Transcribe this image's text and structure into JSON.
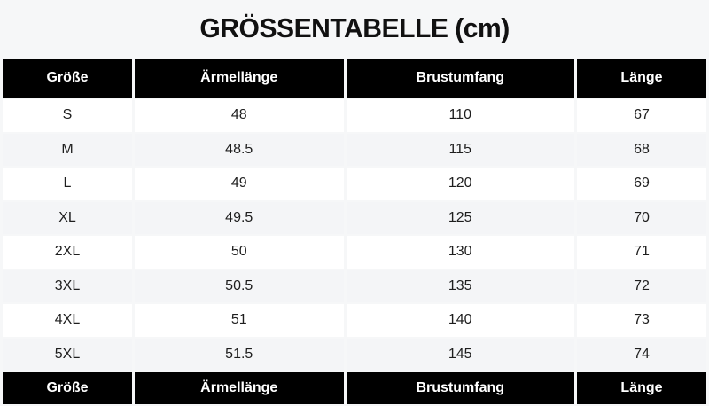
{
  "page": {
    "title": "GRÖSSENTABELLE (cm)",
    "background": "#f6f7f8"
  },
  "chart_data": {
    "type": "table",
    "title": "GRÖSSENTABELLE (cm)",
    "unit": "cm",
    "columns": [
      "Größe",
      "Ärmellänge",
      "Brustumfang",
      "Länge"
    ],
    "rows": [
      [
        "S",
        48,
        110,
        67
      ],
      [
        "M",
        48.5,
        115,
        68
      ],
      [
        "L",
        49,
        120,
        69
      ],
      [
        "XL",
        49.5,
        125,
        70
      ],
      [
        "2XL",
        50,
        130,
        71
      ],
      [
        "3XL",
        50.5,
        135,
        72
      ],
      [
        "4XL",
        51,
        140,
        73
      ],
      [
        "5XL",
        51.5,
        145,
        74
      ]
    ],
    "layout": {
      "header_bg": "#000000",
      "header_text_color": "#ffffff",
      "row_bg": "#ffffff",
      "row_alt_bg": "#f4f5f7",
      "page_bg": "#f6f7f8",
      "body_text_color": "#1e1e1e",
      "zebra_striping": true,
      "repeated_header_clipped_at_bottom": true
    }
  }
}
